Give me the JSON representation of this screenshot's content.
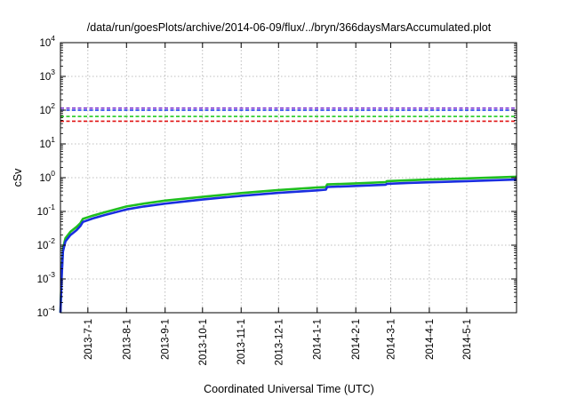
{
  "chart_data": {
    "type": "line",
    "title": "/data/run/goesPlots/archive/2014-06-09/flux/../bryn/366daysMarsAccumulated.plot",
    "xlabel": "Coordinated Universal Time (UTC)",
    "ylabel": "cSv",
    "yscale": "log",
    "ylim": [
      0.0001,
      10000
    ],
    "y_ticks": [
      {
        "base": "10",
        "exp": "-4",
        "value": 0.0001
      },
      {
        "base": "10",
        "exp": "-3",
        "value": 0.001
      },
      {
        "base": "10",
        "exp": "-2",
        "value": 0.01
      },
      {
        "base": "10",
        "exp": "-1",
        "value": 0.1
      },
      {
        "base": "10",
        "exp": "0",
        "value": 1
      },
      {
        "base": "10",
        "exp": "1",
        "value": 10
      },
      {
        "base": "10",
        "exp": "2",
        "value": 100
      },
      {
        "base": "10",
        "exp": "3",
        "value": 1000
      },
      {
        "base": "10",
        "exp": "4",
        "value": 10000
      }
    ],
    "xlim": [
      "2013-06-09",
      "2014-06-10"
    ],
    "x_ticks": [
      "2013-7-1",
      "2013-8-1",
      "2013-9-1",
      "2013-10-1",
      "2013-11-1",
      "2013-12-1",
      "2014-1-1",
      "2014-2-1",
      "2014-3-1",
      "2014-4-1",
      "2014-5-1"
    ],
    "grid": true,
    "legend": "none",
    "reference_lines": [
      {
        "y": 115,
        "color": "#7b2fd0",
        "style": "dashed"
      },
      {
        "y": 100,
        "color": "#1030e8",
        "style": "dashed"
      },
      {
        "y": 65,
        "color": "#22cc22",
        "style": "dashed"
      },
      {
        "y": 47,
        "color": "#e01010",
        "style": "dashed"
      }
    ],
    "series": [
      {
        "color": "#1fbf1f",
        "points": [
          [
            "2013-06-09",
            0.0001
          ],
          [
            "2013-06-10",
            0.0015
          ],
          [
            "2013-06-11",
            0.008
          ],
          [
            "2013-06-13",
            0.016
          ],
          [
            "2013-06-17",
            0.025
          ],
          [
            "2013-06-22",
            0.035
          ],
          [
            "2013-06-25",
            0.045
          ],
          [
            "2013-06-27",
            0.06
          ],
          [
            "2013-07-05",
            0.075
          ],
          [
            "2013-07-15",
            0.095
          ],
          [
            "2013-08-01",
            0.14
          ],
          [
            "2013-08-15",
            0.17
          ],
          [
            "2013-09-01",
            0.21
          ],
          [
            "2013-10-01",
            0.27
          ],
          [
            "2013-11-01",
            0.35
          ],
          [
            "2013-12-01",
            0.43
          ],
          [
            "2014-01-01",
            0.51
          ],
          [
            "2014-01-08",
            0.53
          ],
          [
            "2014-01-09",
            0.63
          ],
          [
            "2014-02-01",
            0.68
          ],
          [
            "2014-02-25",
            0.74
          ],
          [
            "2014-02-26",
            0.79
          ],
          [
            "2014-03-15",
            0.84
          ],
          [
            "2014-04-01",
            0.88
          ],
          [
            "2014-05-01",
            0.95
          ],
          [
            "2014-06-10",
            1.07
          ]
        ]
      },
      {
        "color": "#1a2ee0",
        "points": [
          [
            "2013-06-09",
            0.0001
          ],
          [
            "2013-06-10",
            0.0012
          ],
          [
            "2013-06-11",
            0.0065
          ],
          [
            "2013-06-13",
            0.013
          ],
          [
            "2013-06-17",
            0.02
          ],
          [
            "2013-06-22",
            0.028
          ],
          [
            "2013-06-25",
            0.037
          ],
          [
            "2013-06-27",
            0.049
          ],
          [
            "2013-07-05",
            0.062
          ],
          [
            "2013-07-15",
            0.079
          ],
          [
            "2013-08-01",
            0.115
          ],
          [
            "2013-08-15",
            0.14
          ],
          [
            "2013-09-01",
            0.17
          ],
          [
            "2013-10-01",
            0.225
          ],
          [
            "2013-11-01",
            0.29
          ],
          [
            "2013-12-01",
            0.355
          ],
          [
            "2014-01-01",
            0.42
          ],
          [
            "2014-01-08",
            0.44
          ],
          [
            "2014-01-09",
            0.53
          ],
          [
            "2014-02-01",
            0.57
          ],
          [
            "2014-02-25",
            0.62
          ],
          [
            "2014-02-26",
            0.66
          ],
          [
            "2014-03-15",
            0.7
          ],
          [
            "2014-04-01",
            0.73
          ],
          [
            "2014-05-01",
            0.79
          ],
          [
            "2014-06-10",
            0.88
          ]
        ]
      }
    ]
  }
}
